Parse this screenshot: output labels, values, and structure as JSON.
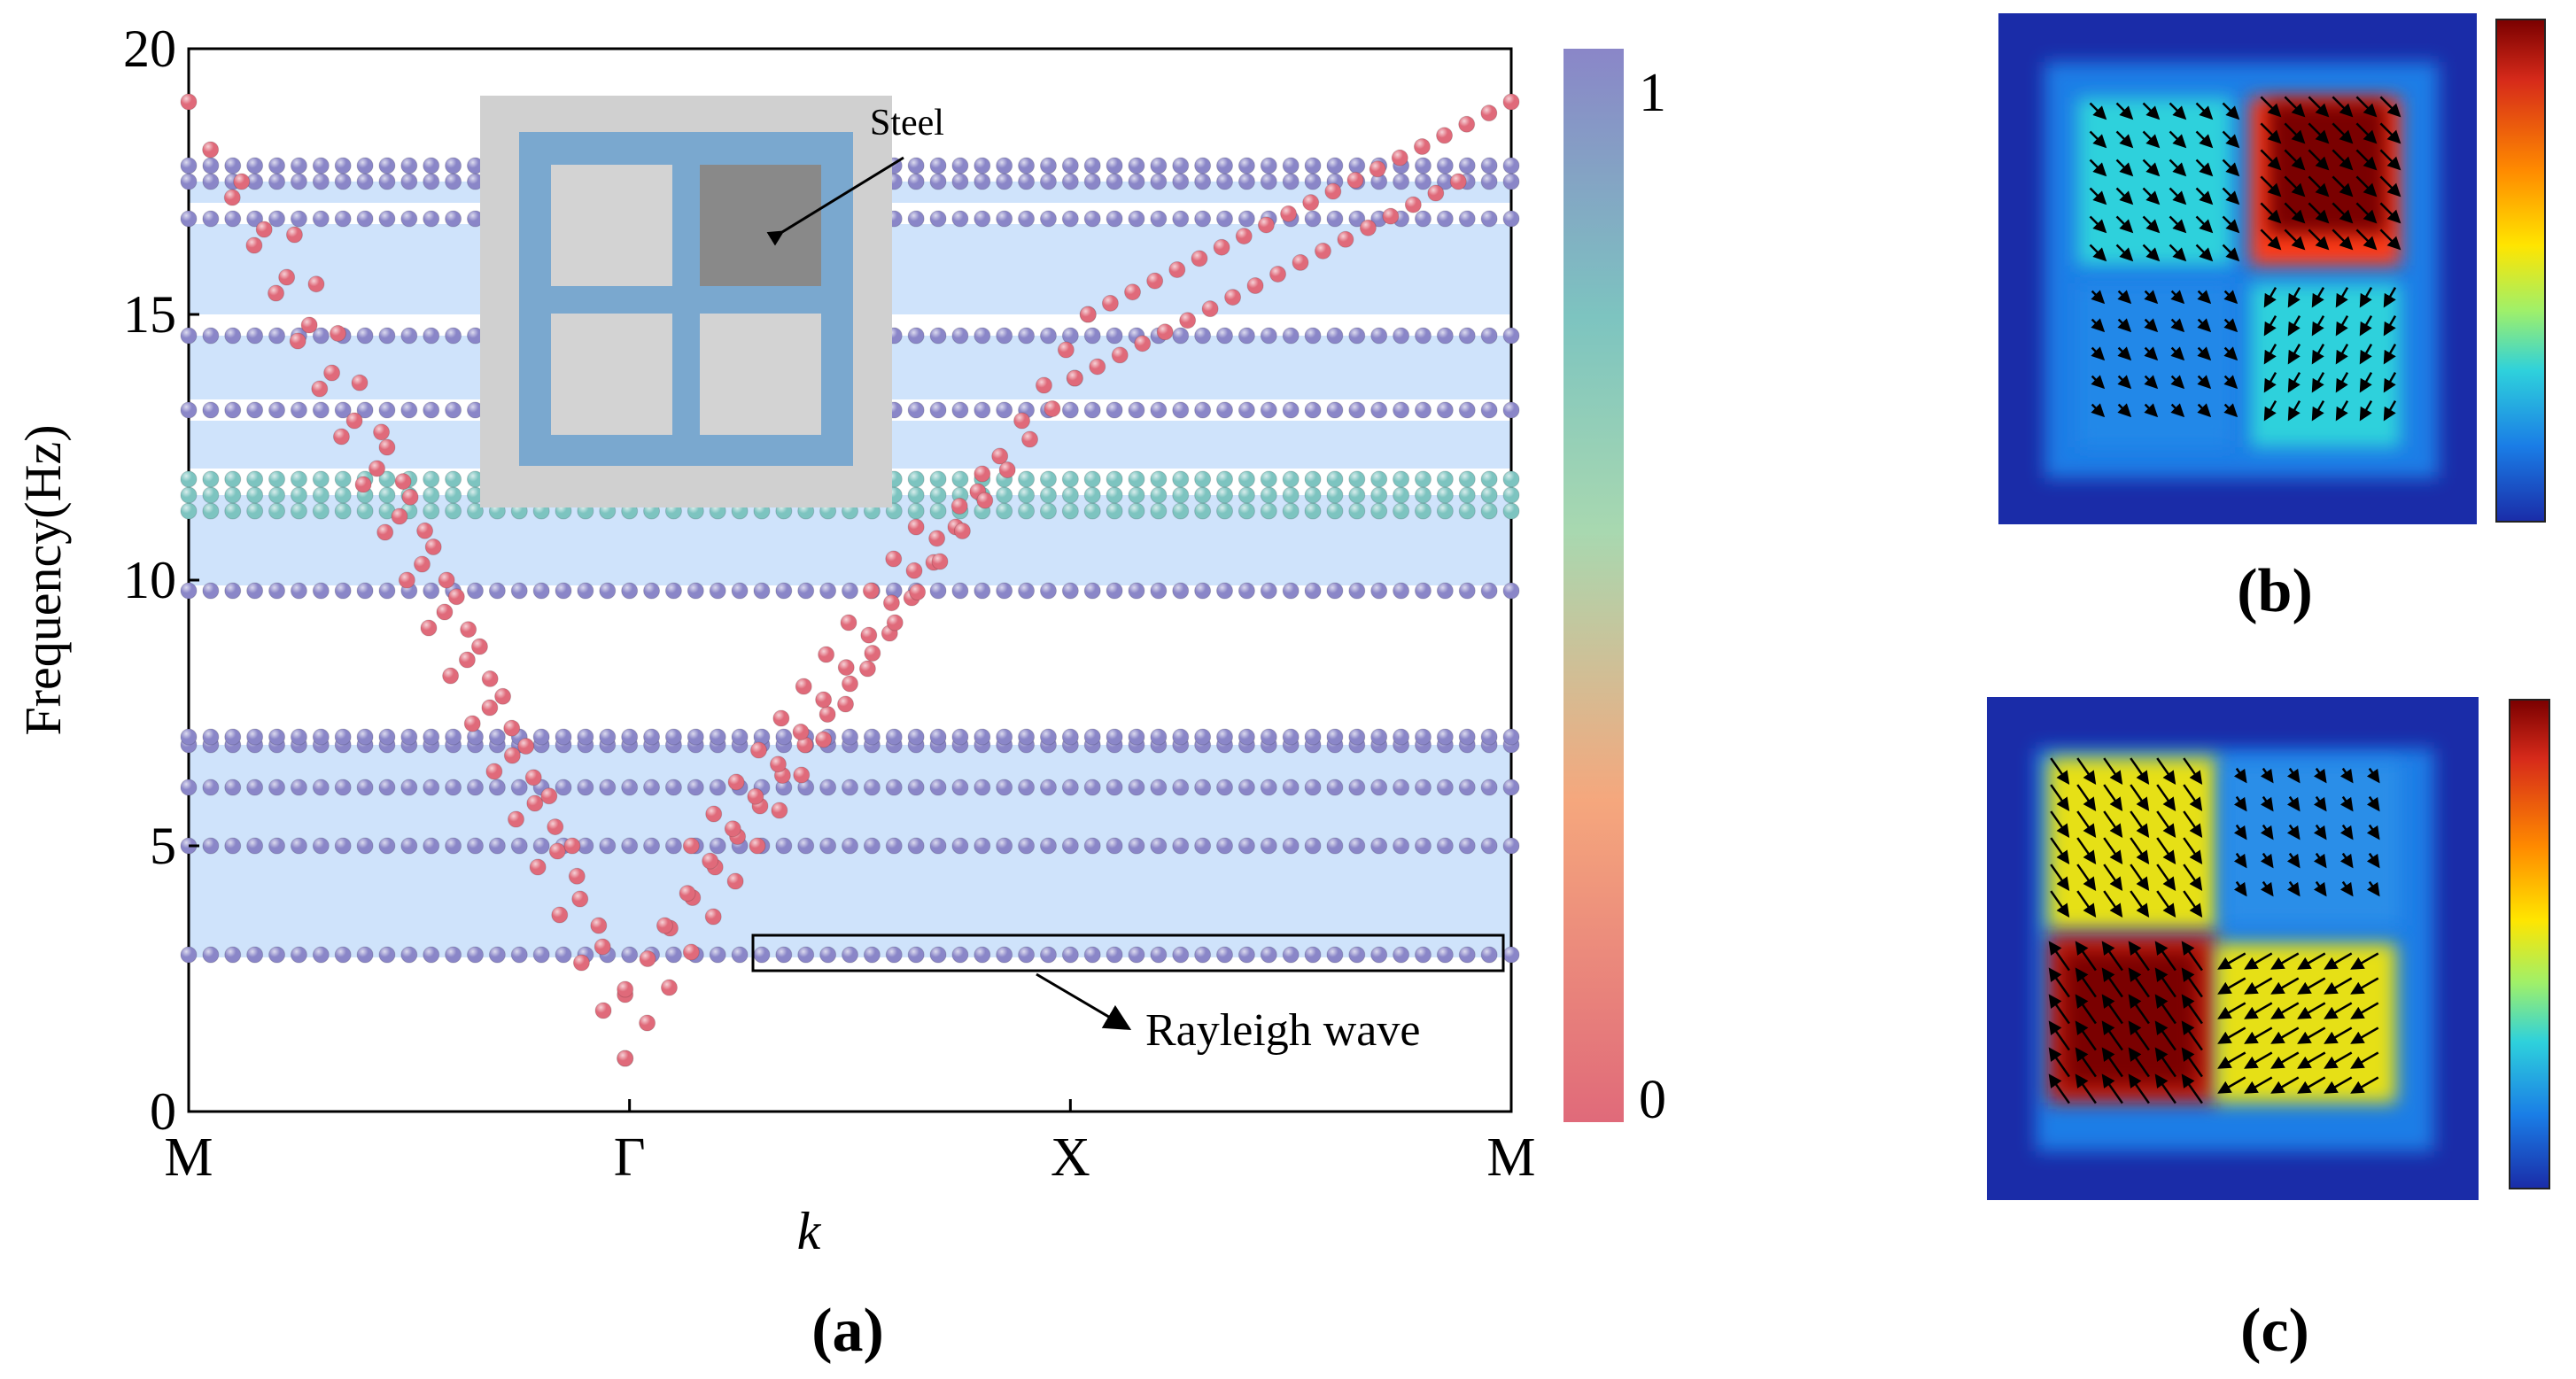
{
  "figure": {
    "panel_labels": {
      "a": "(a)",
      "b": "(b)",
      "c": "(c)"
    }
  },
  "chart_data": {
    "type": "scatter",
    "title": "",
    "xlabel": "k",
    "ylabel": "Frequency(Hz)",
    "x_ticks": [
      "M",
      "Γ",
      "X",
      "M"
    ],
    "y_ticks": [
      0,
      5,
      10,
      15,
      20
    ],
    "ylim": [
      0,
      20
    ],
    "colorbar": {
      "min": 0,
      "max": 1,
      "min_label": "0",
      "max_label": "1",
      "colors": [
        "#e06a7a",
        "#f5a77d",
        "#a8d8b0",
        "#7dc4c0",
        "#8a86c8"
      ]
    },
    "band_gaps": [
      [
        17.5,
        17.2
      ],
      [
        16.7,
        15.0
      ],
      [
        14.6,
        13.3
      ],
      [
        13.0,
        12.0
      ],
      [
        11.2,
        9.9
      ],
      [
        9.6,
        7.0
      ]
    ],
    "passband_shading": [
      [
        2.9,
        6.9
      ],
      [
        9.9,
        11.6
      ],
      [
        12.1,
        13.0
      ],
      [
        13.4,
        14.6
      ],
      [
        15.0,
        16.7
      ],
      [
        17.1,
        17.5
      ]
    ],
    "flat_bands": [
      {
        "freq": 2.95,
        "relative_weight": 1.0
      },
      {
        "freq": 5.0,
        "relative_weight": 1.0
      },
      {
        "freq": 6.1,
        "relative_weight": 1.0
      },
      {
        "freq": 6.9,
        "relative_weight": 1.0
      },
      {
        "freq": 7.05,
        "relative_weight": 1.0
      },
      {
        "freq": 9.8,
        "relative_weight": 1.0
      },
      {
        "freq": 11.3,
        "relative_weight": 0.85
      },
      {
        "freq": 11.6,
        "relative_weight": 0.75
      },
      {
        "freq": 11.9,
        "relative_weight": 0.8
      },
      {
        "freq": 13.2,
        "relative_weight": 1.0
      },
      {
        "freq": 14.6,
        "relative_weight": 1.0
      },
      {
        "freq": 16.8,
        "relative_weight": 1.0
      },
      {
        "freq": 17.5,
        "relative_weight": 1.0
      },
      {
        "freq": 17.8,
        "relative_weight": 1.0
      }
    ],
    "dispersive_branches": [
      {
        "name": "left-1",
        "points": [
          [
            0.0,
            19.0
          ],
          [
            0.33,
            1.0
          ]
        ]
      },
      {
        "name": "left-2",
        "points": [
          [
            0.04,
            17.5
          ],
          [
            0.33,
            2.2
          ]
        ]
      },
      {
        "name": "left-3",
        "points": [
          [
            0.08,
            16.5
          ],
          [
            0.31,
            3.5
          ]
        ]
      },
      {
        "name": "left-4",
        "points": [
          [
            0.15,
            12.5
          ],
          [
            0.29,
            5.0
          ]
        ]
      },
      {
        "name": "right-1",
        "points": [
          [
            0.33,
            1.0
          ],
          [
            0.68,
            15.0
          ],
          [
            1.0,
            19.0
          ]
        ]
      },
      {
        "name": "right-2",
        "points": [
          [
            0.33,
            2.3
          ],
          [
            0.67,
            13.8
          ],
          [
            0.96,
            17.5
          ]
        ]
      },
      {
        "name": "right-3",
        "points": [
          [
            0.36,
            3.5
          ],
          [
            0.6,
            12.0
          ]
        ]
      },
      {
        "name": "right-4",
        "points": [
          [
            0.38,
            5.0
          ],
          [
            0.55,
            11.0
          ]
        ]
      }
    ],
    "annotations": [
      {
        "text": "Rayleigh wave",
        "points_to_freq": 2.95
      }
    ]
  },
  "inset": {
    "steel_label": "Steel",
    "colors": {
      "outer": "#d0d0d0",
      "frame": "#7aa8cf",
      "cell": "#d3d3d3",
      "steel": "#898989"
    }
  },
  "mode_shapes": {
    "b": {
      "cells": [
        "cyan",
        "red",
        "blue",
        "cyan"
      ]
    },
    "c": {
      "cells": [
        "yellow",
        "blue",
        "red",
        "yellow"
      ]
    },
    "colormap": [
      "#7a0000",
      "#d62a1a",
      "#ff8a00",
      "#ffe500",
      "#9ff06a",
      "#2ed1dc",
      "#1a7de6",
      "#1a2ca8"
    ]
  }
}
